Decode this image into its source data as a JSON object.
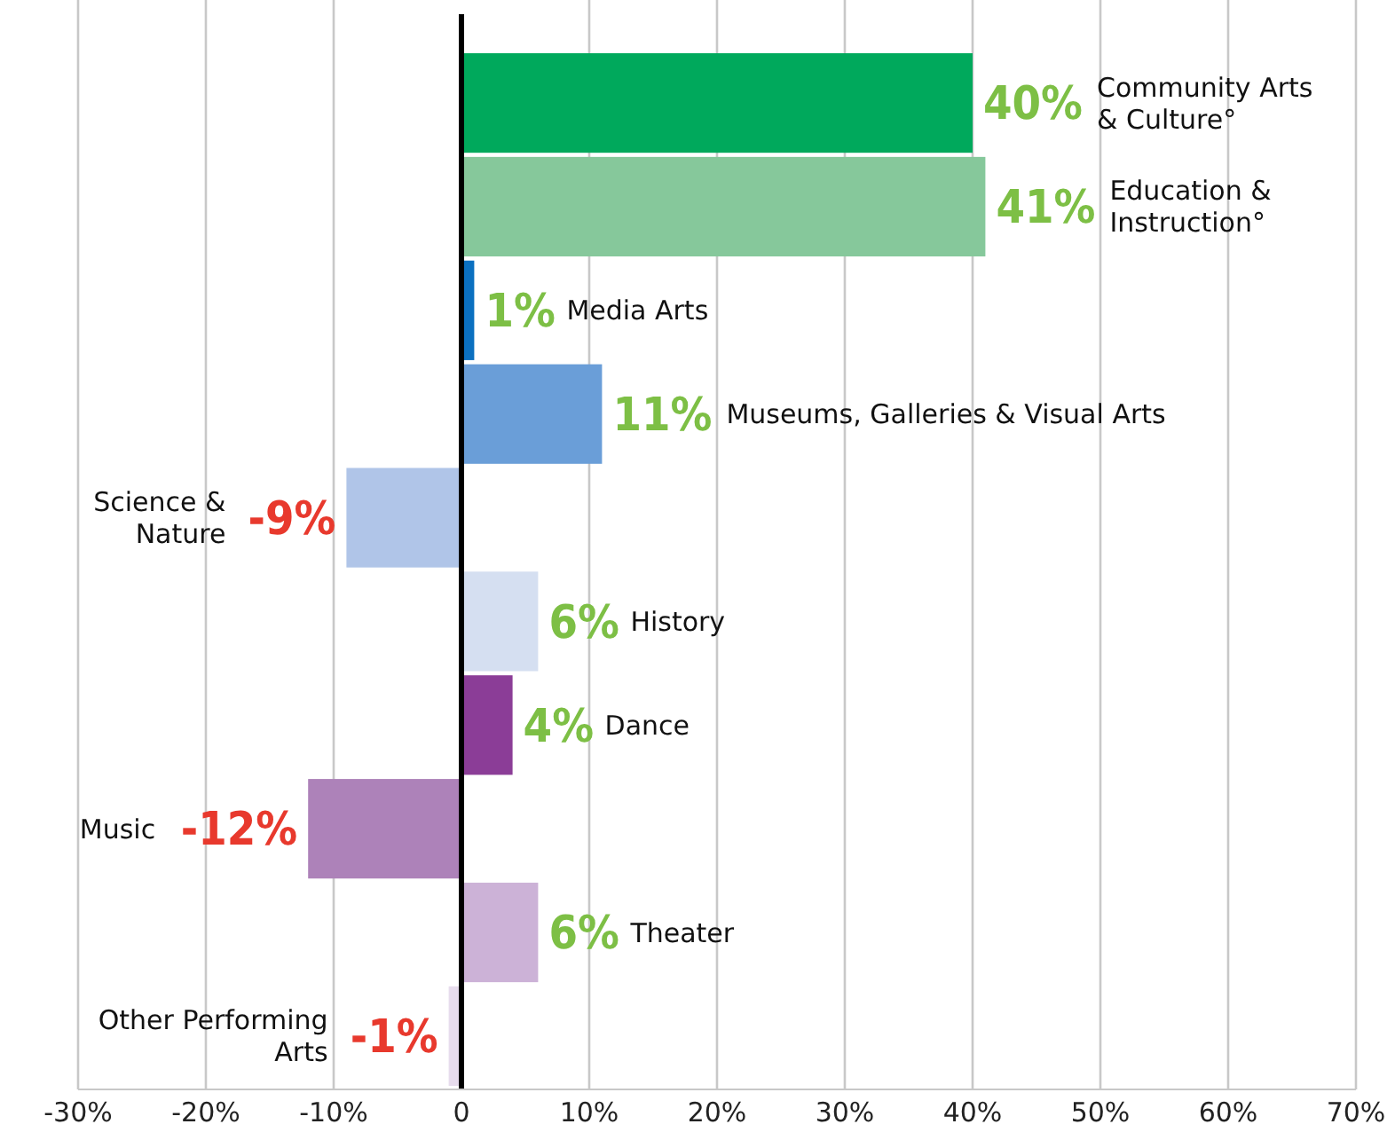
{
  "chart_data": {
    "type": "bar",
    "orientation": "horizontal",
    "categories": [
      "Community Arts & Culture°",
      "Education & Instruction°",
      "Media Arts",
      "Museums, Galleries & Visual Arts",
      "Science & Nature",
      "History",
      "Dance",
      "Music",
      "Theater",
      "Other Performing Arts"
    ],
    "values": [
      40,
      41,
      1,
      11,
      -9,
      6,
      4,
      -12,
      6,
      -1
    ],
    "colors": [
      "#00a95c",
      "#86c89b",
      "#0b70c0",
      "#6a9ed8",
      "#b0c5e8",
      "#d5dff1",
      "#8b3d97",
      "#ad82b9",
      "#ccb2d7",
      "#e7dced"
    ],
    "value_labels": [
      "40%",
      "41%",
      "1%",
      "11%",
      "-9%",
      "6%",
      "4%",
      "-12%",
      "6%",
      "-1%"
    ],
    "xlim": [
      -30,
      70
    ],
    "xticks": [
      {
        "value": -30,
        "label": "-30%"
      },
      {
        "value": -20,
        "label": "-20%"
      },
      {
        "value": -10,
        "label": "-10%"
      },
      0,
      {
        "value": 10,
        "label": "10%"
      },
      {
        "value": 20,
        "label": "20%"
      },
      {
        "value": 30,
        "label": "30%"
      },
      {
        "value": 40,
        "label": "40%"
      },
      {
        "value": 50,
        "label": "50%"
      },
      {
        "value": 60,
        "label": "60%"
      },
      {
        "value": 70,
        "label": "70%"
      }
    ],
    "grid": "x"
  }
}
